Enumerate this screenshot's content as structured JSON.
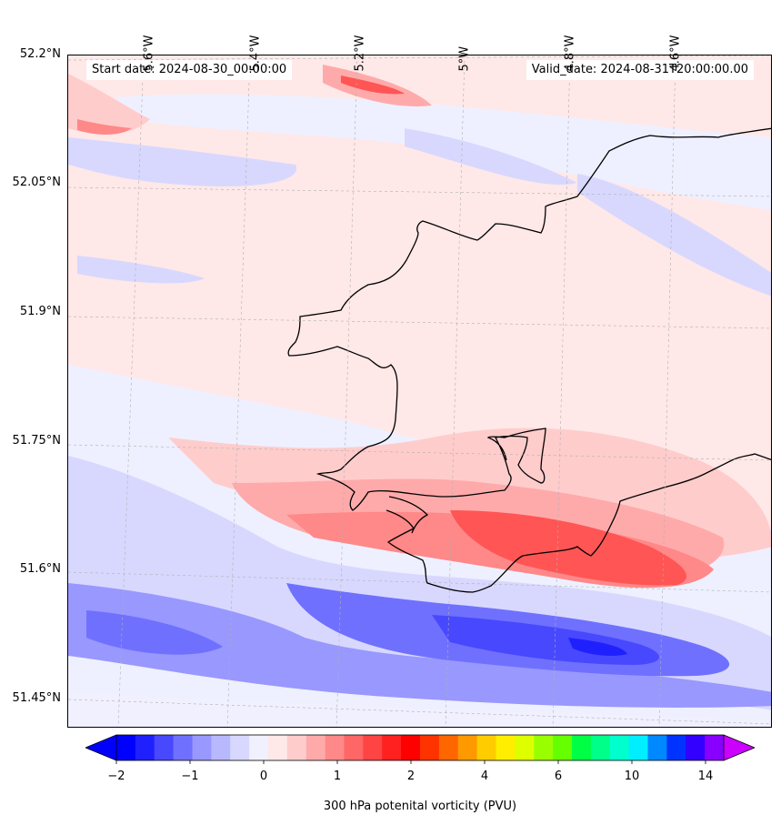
{
  "header": {
    "start_date": "Start date: 2024-08-30_00:00:00",
    "valid_date": "Valid_date: 2024-08-31T20:00:00.00"
  },
  "axes": {
    "lat_labels": [
      "52.2°N",
      "52.05°N",
      "51.9°N",
      "51.75°N",
      "51.6°N",
      "51.45°N"
    ],
    "lon_labels": [
      "5.6°W",
      "5.4°W",
      "5.2°W",
      "5°W",
      "4.8°W",
      "4.6°W"
    ]
  },
  "colorbar": {
    "label": "300 hPa potenital vorticity (PVU)",
    "tick_labels": [
      "−2",
      "−1",
      "0",
      "1",
      "2",
      "4",
      "6",
      "10",
      "14"
    ],
    "under_color": "#0000ff",
    "over_color": "#cc00ff",
    "colors": [
      "#0000ff",
      "#2020ff",
      "#4848ff",
      "#7070ff",
      "#9898ff",
      "#b8b8ff",
      "#d8d8ff",
      "#f0f0ff",
      "#ffe8e8",
      "#ffcccc",
      "#ffaaaa",
      "#ff8888",
      "#ff6666",
      "#ff4444",
      "#ff2020",
      "#ff0000",
      "#ff3300",
      "#ff6600",
      "#ff9900",
      "#ffcc00",
      "#ffee00",
      "#ddff00",
      "#99ff00",
      "#66ff00",
      "#00ff44",
      "#00ff88",
      "#00ffcc",
      "#00eeff",
      "#0088ff",
      "#0033ff",
      "#3300ff",
      "#8800ff"
    ]
  },
  "palette": {
    "land_outline": "#000000",
    "background": "#eef0ff"
  },
  "coastline_icon": "coastline-outline-icon"
}
